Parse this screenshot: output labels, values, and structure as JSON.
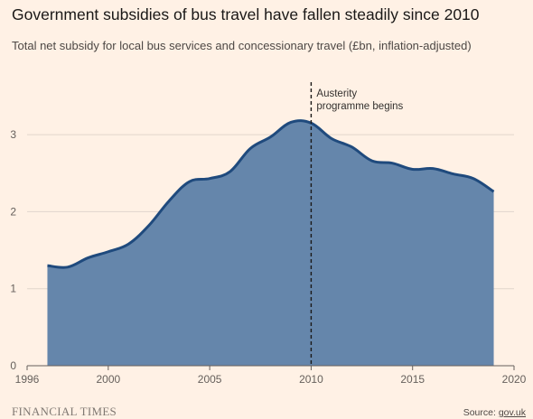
{
  "title": "Government subsidies of bus travel have fallen steadily since 2010",
  "subtitle": "Total net subsidy for local bus services and concessionary travel (£bn, inflation-adjusted)",
  "brand": "FINANCIAL TIMES",
  "source": {
    "prefix": "Source: ",
    "link": "gov.uk"
  },
  "colors": {
    "background": "#fff1e5",
    "area_fill": "#6586ab",
    "area_line": "#1f4a7d",
    "grid": "#e0d5cc"
  },
  "chart_data": {
    "type": "area",
    "title": "Government subsidies of bus travel have fallen steadily since 2010",
    "subtitle": "Total net subsidy for local bus services and concessionary travel (£bn, inflation-adjusted)",
    "xlim": [
      1996,
      2020
    ],
    "ylim": [
      0,
      3.5
    ],
    "x_ticks": [
      1996,
      2000,
      2005,
      2010,
      2015,
      2020
    ],
    "y_ticks": [
      0,
      1,
      2,
      3
    ],
    "grid": "horizontal",
    "x": [
      1997,
      1998,
      1999,
      2000,
      2001,
      2002,
      2003,
      2004,
      2005,
      2006,
      2007,
      2008,
      2009,
      2010,
      2011,
      2012,
      2013,
      2014,
      2015,
      2016,
      2017,
      2018,
      2019
    ],
    "values": [
      1.3,
      1.28,
      1.4,
      1.48,
      1.58,
      1.82,
      2.14,
      2.39,
      2.43,
      2.52,
      2.82,
      2.97,
      3.16,
      3.15,
      2.95,
      2.84,
      2.66,
      2.63,
      2.55,
      2.56,
      2.49,
      2.43,
      2.26
    ],
    "annotations": [
      {
        "x": 2010,
        "type": "vline",
        "style": "dashed",
        "label": [
          "Austerity",
          "programme begins"
        ]
      }
    ]
  }
}
